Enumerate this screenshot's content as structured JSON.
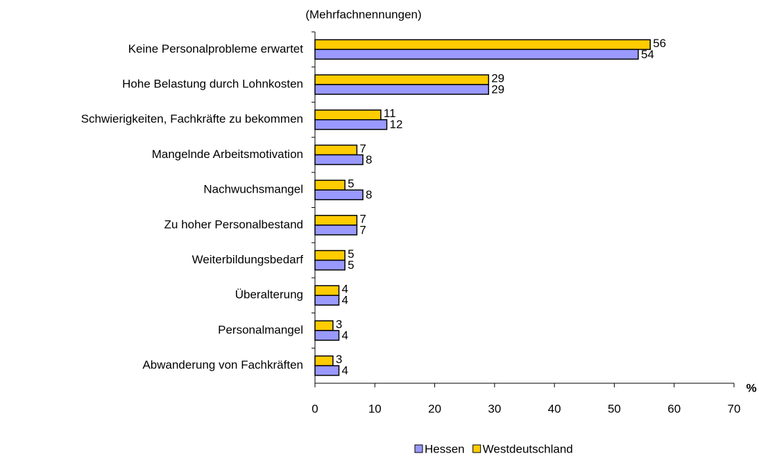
{
  "chart_data": {
    "type": "bar",
    "orientation": "horizontal",
    "subtitle": "(Mehrfachnennungen)",
    "categories": [
      "Keine Personalprobleme erwartet",
      "Hohe Belastung durch Lohnkosten",
      "Schwierigkeiten, Fachkräfte zu bekommen",
      "Mangelnde Arbeitsmotivation",
      "Nachwuchsmangel",
      "Zu hoher Personalbestand",
      "Weiterbildungsbedarf",
      "Überalterung",
      "Personalmangel",
      "Abwanderung von Fachkräften"
    ],
    "series": [
      {
        "name": "Hessen",
        "color": "#9999ff",
        "values": [
          54,
          29,
          12,
          8,
          8,
          7,
          5,
          4,
          4,
          4
        ]
      },
      {
        "name": "Westdeutschland",
        "color": "#ffcc00",
        "values": [
          56,
          29,
          11,
          7,
          5,
          7,
          5,
          4,
          3,
          3
        ]
      }
    ],
    "xlim": [
      0,
      70
    ],
    "xticks": [
      0,
      10,
      20,
      30,
      40,
      50,
      60,
      70
    ],
    "xlabel": "%"
  }
}
